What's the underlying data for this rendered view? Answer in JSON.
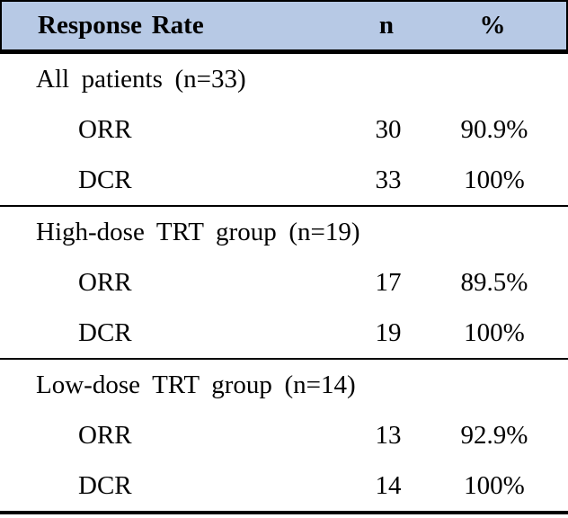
{
  "colors": {
    "header_bg": "#b7c9e5",
    "border": "#000000",
    "text": "#000000",
    "page_bg": "#ffffff"
  },
  "table": {
    "header": {
      "response_rate": "Response Rate",
      "n": "n",
      "percent": "%"
    },
    "sections": [
      {
        "label": "All patients (n=33)",
        "rows": [
          {
            "metric": "ORR",
            "n": "30",
            "percent": "90.9%"
          },
          {
            "metric": "DCR",
            "n": "33",
            "percent": "100%"
          }
        ]
      },
      {
        "label": "High-dose TRT group (n=19)",
        "rows": [
          {
            "metric": "ORR",
            "n": "17",
            "percent": "89.5%"
          },
          {
            "metric": "DCR",
            "n": "19",
            "percent": "100%"
          }
        ]
      },
      {
        "label": "Low-dose TRT group (n=14)",
        "rows": [
          {
            "metric": "ORR",
            "n": "13",
            "percent": "92.9%"
          },
          {
            "metric": "DCR",
            "n": "14",
            "percent": "100%"
          }
        ]
      }
    ]
  }
}
